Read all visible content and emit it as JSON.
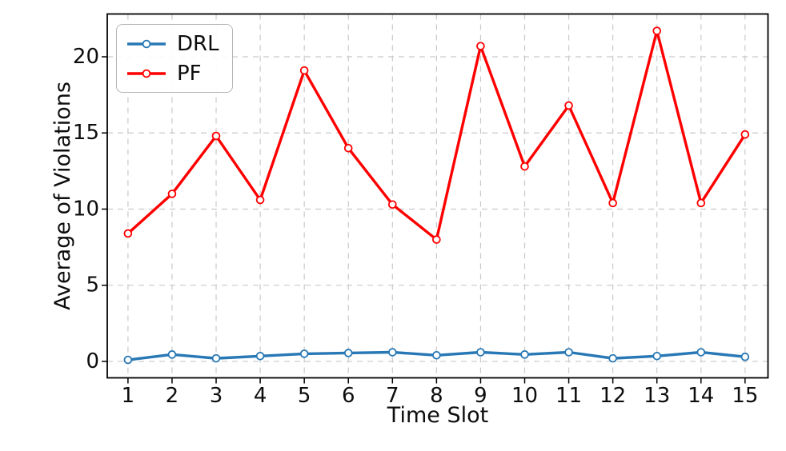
{
  "chart_data": {
    "type": "line",
    "title": "",
    "xlabel": "Time Slot",
    "ylabel": "Average of Violations",
    "x": [
      1,
      2,
      3,
      4,
      5,
      6,
      7,
      8,
      9,
      10,
      11,
      12,
      13,
      14,
      15
    ],
    "series": [
      {
        "name": "DRL",
        "color": "#2878b5",
        "marker": "open-circle",
        "values": [
          0.1,
          0.45,
          0.2,
          0.35,
          0.5,
          0.55,
          0.6,
          0.4,
          0.6,
          0.45,
          0.6,
          0.2,
          0.35,
          0.6,
          0.3
        ]
      },
      {
        "name": "PF",
        "color": "#ff0000",
        "marker": "open-circle",
        "values": [
          8.4,
          11.0,
          14.8,
          10.6,
          19.1,
          14.0,
          10.3,
          8.0,
          20.7,
          12.8,
          16.8,
          10.4,
          21.7,
          10.4,
          14.9
        ]
      }
    ],
    "xticks": [
      1,
      2,
      3,
      4,
      5,
      6,
      7,
      8,
      9,
      10,
      11,
      12,
      13,
      14,
      15
    ],
    "yticks": [
      0,
      5,
      10,
      15,
      20
    ],
    "xlim": [
      0.53,
      15.52
    ],
    "ylim": [
      -1.08,
      22.81
    ],
    "grid": true,
    "grid_style": "dashed",
    "grid_color": "#c9c9c9",
    "axis_color": "#000000",
    "text_color": "#0d0d0d",
    "background": "#ffffff",
    "legend": {
      "position": "upper-left",
      "entries": [
        "DRL",
        "PF"
      ]
    }
  }
}
